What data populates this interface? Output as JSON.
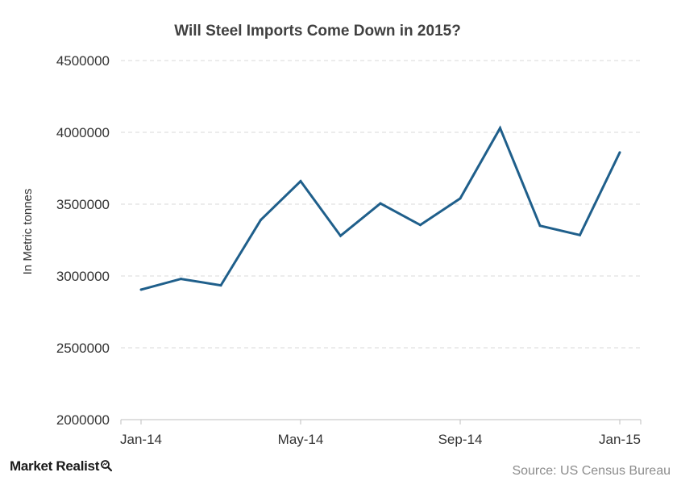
{
  "chart_data": {
    "type": "line",
    "title": "Will Steel Imports Come Down in 2015?",
    "xlabel": "",
    "ylabel": "In Metric tonnes",
    "x": [
      "Jan-14",
      "Feb-14",
      "Mar-14",
      "Apr-14",
      "May-14",
      "Jun-14",
      "Jul-14",
      "Aug-14",
      "Sep-14",
      "Oct-14",
      "Nov-14",
      "Dec-14",
      "Jan-15"
    ],
    "x_tick_labels": [
      "Jan-14",
      "May-14",
      "Sep-14",
      "Jan-15"
    ],
    "series": [
      {
        "values": [
          2905000,
          2980000,
          2935000,
          3390000,
          3660000,
          3280000,
          3505000,
          3355000,
          3540000,
          4030000,
          3350000,
          3285000,
          3860000
        ]
      }
    ],
    "ylim": [
      2000000,
      4500000
    ],
    "y_ticks": [
      "2000000",
      "2500000",
      "3000000",
      "3500000",
      "4000000",
      "4500000"
    ],
    "grid": true,
    "line_color": "#1f5f8b"
  },
  "footer": {
    "brand": "Market Realist",
    "source": "Source:  US Census Bureau"
  },
  "icons": {
    "brand_mark": "magnifier-icon"
  }
}
